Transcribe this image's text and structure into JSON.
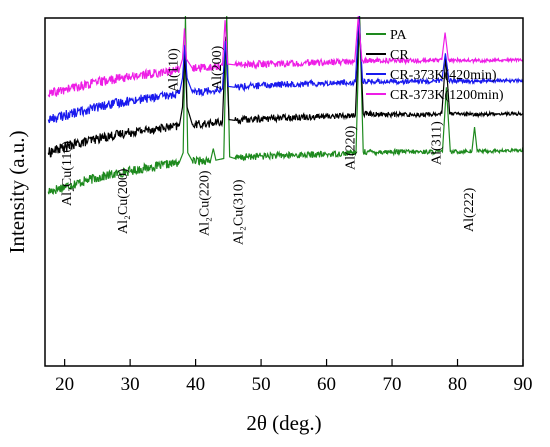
{
  "chart_data": {
    "type": "line",
    "xlabel": "2θ (deg.)",
    "ylabel": "Intensity (a.u.)",
    "xlim": [
      17,
      90
    ],
    "x_ticks": [
      20,
      30,
      40,
      50,
      60,
      70,
      80,
      90
    ],
    "y_ticks_shown": false,
    "grid": false,
    "legend_placement": "top-right",
    "series": [
      {
        "name": "PA",
        "color": "#1e8a1e",
        "points": [
          [
            17.5,
            208
          ],
          [
            20,
            214
          ],
          [
            25,
            225
          ],
          [
            30,
            233
          ],
          [
            35,
            240
          ],
          [
            37.5,
            243
          ],
          [
            38.1,
            255
          ],
          [
            38.45,
            420
          ],
          [
            38.8,
            255
          ],
          [
            39.5,
            245
          ],
          [
            42.3,
            246
          ],
          [
            42.7,
            260
          ],
          [
            43.1,
            246
          ],
          [
            44.3,
            248
          ],
          [
            44.75,
            420
          ],
          [
            45.2,
            250
          ],
          [
            46,
            248
          ],
          [
            48,
            250
          ],
          [
            50,
            251
          ],
          [
            55,
            252
          ],
          [
            60,
            253
          ],
          [
            64.5,
            255
          ],
          [
            65.05,
            420
          ],
          [
            65.6,
            256
          ],
          [
            70,
            256
          ],
          [
            75,
            256
          ],
          [
            77.7,
            256
          ],
          [
            78.3,
            334
          ],
          [
            78.9,
            256
          ],
          [
            82.2,
            257
          ],
          [
            82.6,
            286
          ],
          [
            83.0,
            257
          ],
          [
            86,
            257
          ],
          [
            90,
            258
          ]
        ]
      },
      {
        "name": "CR",
        "color": "#000000",
        "points": [
          [
            17.5,
            255
          ],
          [
            20,
            262
          ],
          [
            25,
            272
          ],
          [
            30,
            280
          ],
          [
            35,
            285
          ],
          [
            37.5,
            287
          ],
          [
            38.0,
            310
          ],
          [
            38.35,
            377
          ],
          [
            38.7,
            310
          ],
          [
            39.5,
            289
          ],
          [
            42,
            290
          ],
          [
            44.1,
            292
          ],
          [
            44.6,
            395
          ],
          [
            45.1,
            295
          ],
          [
            46,
            294
          ],
          [
            50,
            296
          ],
          [
            55,
            298
          ],
          [
            60,
            299
          ],
          [
            64.4,
            300
          ],
          [
            65.0,
            420
          ],
          [
            65.6,
            302
          ],
          [
            70,
            301
          ],
          [
            75,
            301
          ],
          [
            77.6,
            302
          ],
          [
            78.2,
            370
          ],
          [
            78.8,
            302
          ],
          [
            82,
            301
          ],
          [
            86,
            302
          ],
          [
            90,
            302
          ]
        ]
      },
      {
        "name": "CR-373K(420min)",
        "color": "#1a1aee",
        "points": [
          [
            17.5,
            295
          ],
          [
            20,
            300
          ],
          [
            25,
            310
          ],
          [
            30,
            318
          ],
          [
            35,
            323
          ],
          [
            37.5,
            326
          ],
          [
            38.0,
            345
          ],
          [
            38.35,
            385
          ],
          [
            38.7,
            345
          ],
          [
            39.5,
            328
          ],
          [
            42,
            330
          ],
          [
            44.1,
            332
          ],
          [
            44.55,
            390
          ],
          [
            45.0,
            335
          ],
          [
            46,
            334
          ],
          [
            50,
            336
          ],
          [
            55,
            338
          ],
          [
            60,
            339
          ],
          [
            64.4,
            340
          ],
          [
            64.95,
            420
          ],
          [
            65.5,
            341
          ],
          [
            70,
            341
          ],
          [
            75,
            341
          ],
          [
            77.6,
            342
          ],
          [
            78.15,
            375
          ],
          [
            78.7,
            342
          ],
          [
            82,
            341
          ],
          [
            86,
            342
          ],
          [
            90,
            342
          ]
        ]
      },
      {
        "name": "CR-373K(1200min)",
        "color": "#ee1ee6",
        "points": [
          [
            17.5,
            325
          ],
          [
            20,
            331
          ],
          [
            25,
            340
          ],
          [
            30,
            347
          ],
          [
            35,
            352
          ],
          [
            37.5,
            355
          ],
          [
            38.0,
            368
          ],
          [
            38.3,
            405
          ],
          [
            38.6,
            368
          ],
          [
            39.5,
            357
          ],
          [
            42,
            358
          ],
          [
            44.1,
            360
          ],
          [
            44.5,
            415
          ],
          [
            44.9,
            362
          ],
          [
            46,
            361
          ],
          [
            50,
            362
          ],
          [
            55,
            363
          ],
          [
            60,
            364
          ],
          [
            64.3,
            365
          ],
          [
            64.85,
            420
          ],
          [
            65.4,
            366
          ],
          [
            70,
            366
          ],
          [
            75,
            366
          ],
          [
            77.6,
            367
          ],
          [
            78.1,
            400
          ],
          [
            78.6,
            367
          ],
          [
            82,
            366
          ],
          [
            86,
            367
          ],
          [
            90,
            367
          ]
        ]
      }
    ],
    "annotations": [
      {
        "text": "Al₂Cu(110)",
        "x": 21
      },
      {
        "text": "Al₂Cu(200)",
        "x": 29.5
      },
      {
        "text": "Al(110)",
        "x": 37.2
      },
      {
        "text": "Al(200)",
        "x": 43.9
      },
      {
        "text": "Al₂Cu(220)",
        "x": 42.0
      },
      {
        "text": "Al₂Cu(310)",
        "x": 47.2
      },
      {
        "text": "Al(220)",
        "x": 64.3
      },
      {
        "text": "Al(311)",
        "x": 77.4
      },
      {
        "text": "Al(222)",
        "x": 82.4
      }
    ]
  }
}
